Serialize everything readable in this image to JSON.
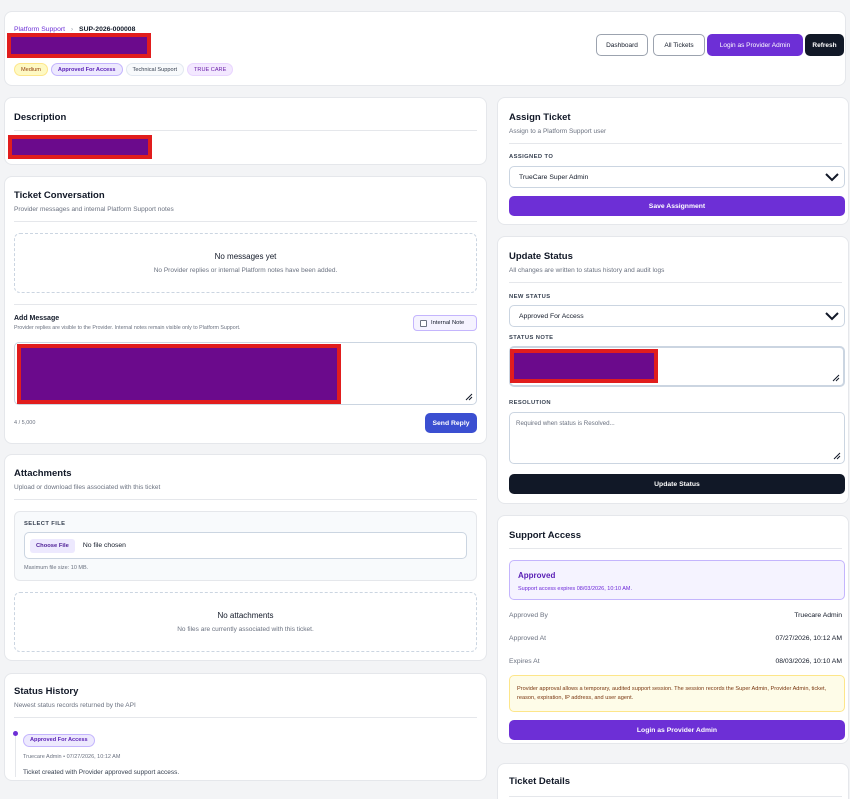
{
  "header": {
    "breadcrumb_parent": "Platform Support",
    "breadcrumb_sep": "›",
    "ticket_id": "SUP-2026-000008",
    "badges": [
      "Medium",
      "Approved For Access",
      "Technical Support",
      "TRUE CARE"
    ],
    "buttons": {
      "dashboard": "Dashboard",
      "all_tickets": "All Tickets",
      "login_provider": "Login as Provider Admin",
      "refresh": "Refresh"
    }
  },
  "description": {
    "title": "Description"
  },
  "conversation": {
    "title": "Ticket Conversation",
    "subtitle": "Provider messages and internal Platform Support notes",
    "empty_title": "No messages yet",
    "empty_text": "No Provider replies or internal Platform notes have been added.",
    "add_title": "Add Message",
    "add_help": "Provider replies are visible to the Provider. Internal notes remain visible only to Platform Support.",
    "internal_note": "Internal Note",
    "char_count": "4 / 5,000",
    "send": "Send Reply"
  },
  "attachments": {
    "title": "Attachments",
    "subtitle": "Upload or download files associated with this ticket",
    "select_label": "SELECT FILE",
    "choose": "Choose File",
    "no_file": "No file chosen",
    "max_size": "Maximum file size: 10 MB.",
    "empty_title": "No attachments",
    "empty_text": "No files are currently associated with this ticket."
  },
  "history": {
    "title": "Status History",
    "subtitle": "Newest status records returned by the API",
    "entries": [
      {
        "status": "Approved For Access",
        "meta": "Truecare Admin • 07/27/2026, 10:12 AM",
        "note": "Ticket created with Provider approved support access."
      }
    ]
  },
  "assign": {
    "title": "Assign Ticket",
    "subtitle": "Assign to a Platform Support user",
    "label": "ASSIGNED TO",
    "value": "TrueCare Super Admin",
    "save": "Save Assignment"
  },
  "update": {
    "title": "Update Status",
    "subtitle": "All changes are written to status history and audit logs",
    "status_label": "NEW STATUS",
    "status_value": "Approved For Access",
    "note_label": "STATUS NOTE",
    "resolution_label": "RESOLUTION",
    "resolution_placeholder": "Required when status is Resolved...",
    "button": "Update Status"
  },
  "access": {
    "title": "Support Access",
    "status": "Approved",
    "expires_text": "Support access expires 08/03/2026, 10:10 AM.",
    "rows": [
      {
        "k": "Approved By",
        "v": "Truecare Admin"
      },
      {
        "k": "Approved At",
        "v": "07/27/2026, 10:12 AM"
      },
      {
        "k": "Expires At",
        "v": "08/03/2026, 10:10 AM"
      }
    ],
    "notice": "Provider approval allows a temporary, audited support session. The session records the Super Admin, Provider Admin, ticket, reason, expiration, IP address, and user agent.",
    "login": "Login as Provider Admin"
  },
  "details": {
    "title": "Ticket Details"
  },
  "colors": {
    "accent": "#6d2fd6",
    "send": "#3b4fd1",
    "dark": "#111827",
    "redaction_fill": "#6b0a8c",
    "redaction_border": "#e11d1d"
  }
}
